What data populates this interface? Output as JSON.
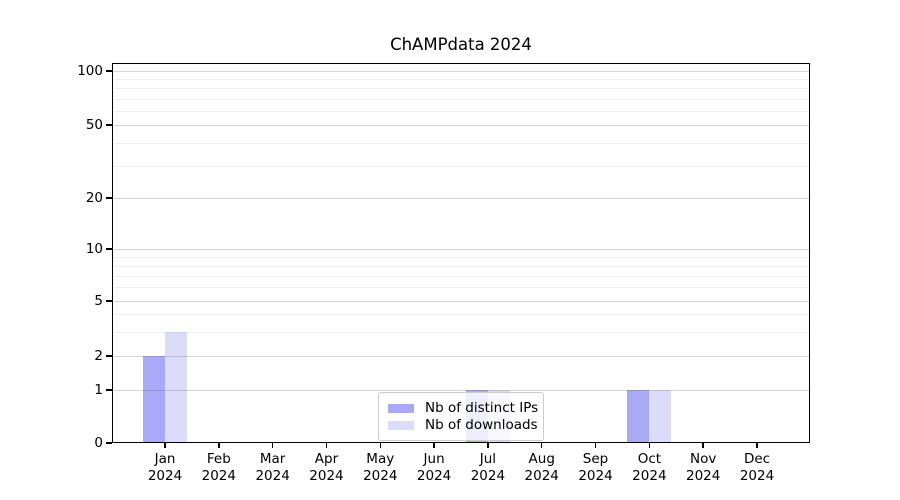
{
  "figure": {
    "background": "#ffffff"
  },
  "chart_data": {
    "type": "bar",
    "title": "ChAMPdata 2024",
    "categories": [
      "Jan",
      "Feb",
      "Mar",
      "Apr",
      "May",
      "Jun",
      "Jul",
      "Aug",
      "Sep",
      "Oct",
      "Nov",
      "Dec"
    ],
    "category_year": "2024",
    "series": [
      {
        "name": "Nb of distinct IPs",
        "color": "#a9a9f8",
        "values": [
          2,
          0,
          0,
          0,
          0,
          0,
          1,
          0,
          0,
          1,
          0,
          0
        ]
      },
      {
        "name": "Nb of downloads",
        "color": "#dbdbfa",
        "values": [
          3,
          0,
          0,
          0,
          0,
          0,
          1,
          0,
          0,
          1,
          0,
          0
        ]
      }
    ],
    "xlabel": "",
    "ylabel": "",
    "yscale": "symlog",
    "yticks": [
      0,
      1,
      2,
      5,
      10,
      20,
      50,
      100
    ],
    "ylim": [
      0,
      111
    ],
    "grid": true,
    "grid_minor": true,
    "legend_position": "lower center",
    "style": {
      "grid_major_color": "#d0d0d0",
      "grid_minor_color": "#ececec",
      "axis_color": "#000000",
      "legend_border_color": "#cccccc"
    }
  }
}
